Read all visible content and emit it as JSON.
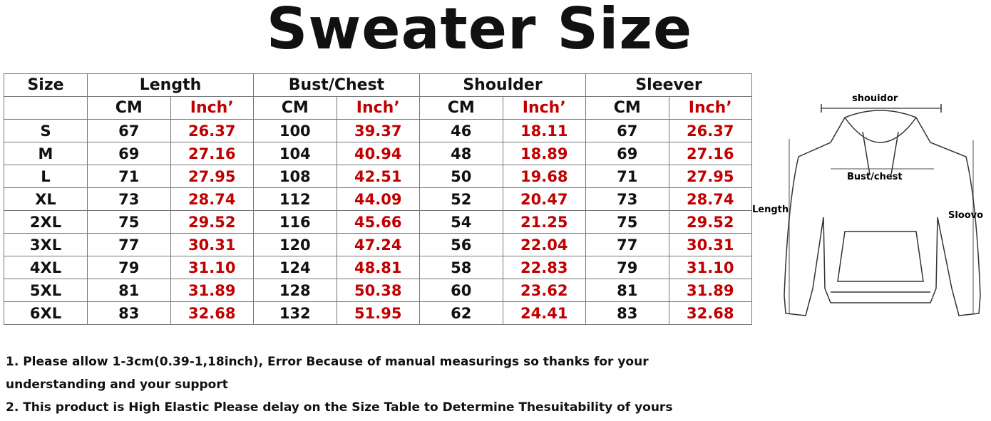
{
  "title": "Sweater Size",
  "table": {
    "headers": [
      "Size",
      "Length",
      "Bust/Chest",
      "Shoulder",
      "Sleever"
    ],
    "units": [
      "CM",
      "Inch’",
      "CM",
      "Inch’",
      "CM",
      "Inch’",
      "CM",
      "Inch’"
    ],
    "rows": [
      [
        "S",
        "67",
        "26.37",
        "100",
        "39.37",
        "46",
        "18.11",
        "67",
        "26.37"
      ],
      [
        "M",
        "69",
        "27.16",
        "104",
        "40.94",
        "48",
        "18.89",
        "69",
        "27.16"
      ],
      [
        "L",
        "71",
        "27.95",
        "108",
        "42.51",
        "50",
        "19.68",
        "71",
        "27.95"
      ],
      [
        "XL",
        "73",
        "28.74",
        "112",
        "44.09",
        "52",
        "20.47",
        "73",
        "28.74"
      ],
      [
        "2XL",
        "75",
        "29.52",
        "116",
        "45.66",
        "54",
        "21.25",
        "75",
        "29.52"
      ],
      [
        "3XL",
        "77",
        "30.31",
        "120",
        "47.24",
        "56",
        "22.04",
        "77",
        "30.31"
      ],
      [
        "4XL",
        "79",
        "31.10",
        "124",
        "48.81",
        "58",
        "22.83",
        "79",
        "31.10"
      ],
      [
        "5XL",
        "81",
        "31.89",
        "128",
        "50.38",
        "60",
        "23.62",
        "81",
        "31.89"
      ],
      [
        "6XL",
        "83",
        "32.68",
        "132",
        "51.95",
        "62",
        "24.41",
        "83",
        "32.68"
      ]
    ]
  },
  "diagram": {
    "labels": {
      "shoulder": "shouidor",
      "bust": "Bust/chest",
      "length": "Length",
      "sleeve": "Sloovo"
    }
  },
  "notes": [
    "1.  Please allow 1-3cm(0.39-1,18inch), Error Because of manual measurings so thanks for your understanding and your support",
    "2.  This product is High Elastic Please delay on the Size Table to Determine Thesuitability of yours"
  ]
}
